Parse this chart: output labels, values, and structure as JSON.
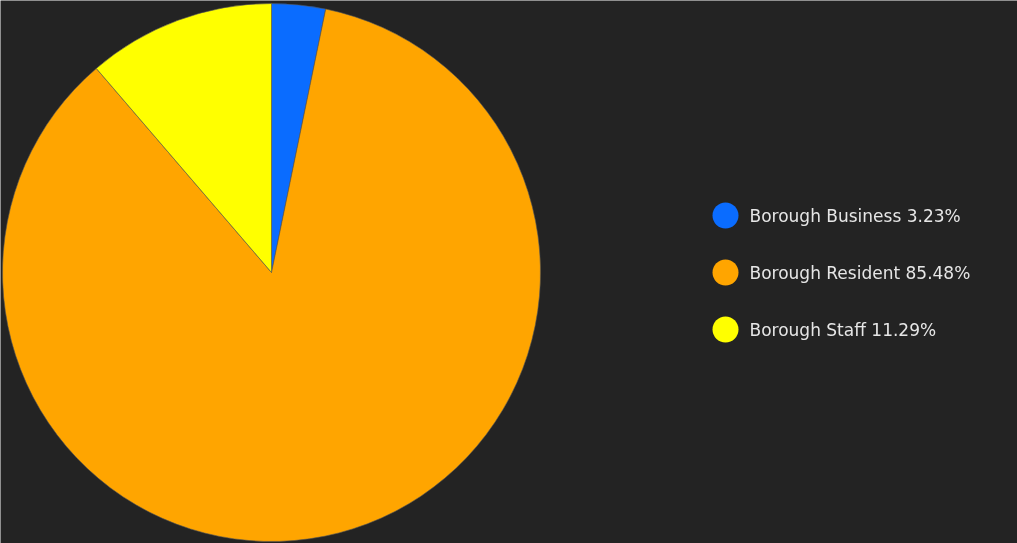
{
  "chart_data": {
    "type": "pie",
    "categories": [
      "Borough Business",
      "Borough Resident",
      "Borough Staff"
    ],
    "values": [
      3.23,
      85.48,
      11.29
    ],
    "colors": [
      "#0a6cff",
      "#ffa500",
      "#ffff00"
    ],
    "value_labels": [
      "3.23%",
      "85.48%",
      "11.29%"
    ],
    "legend": "right"
  }
}
